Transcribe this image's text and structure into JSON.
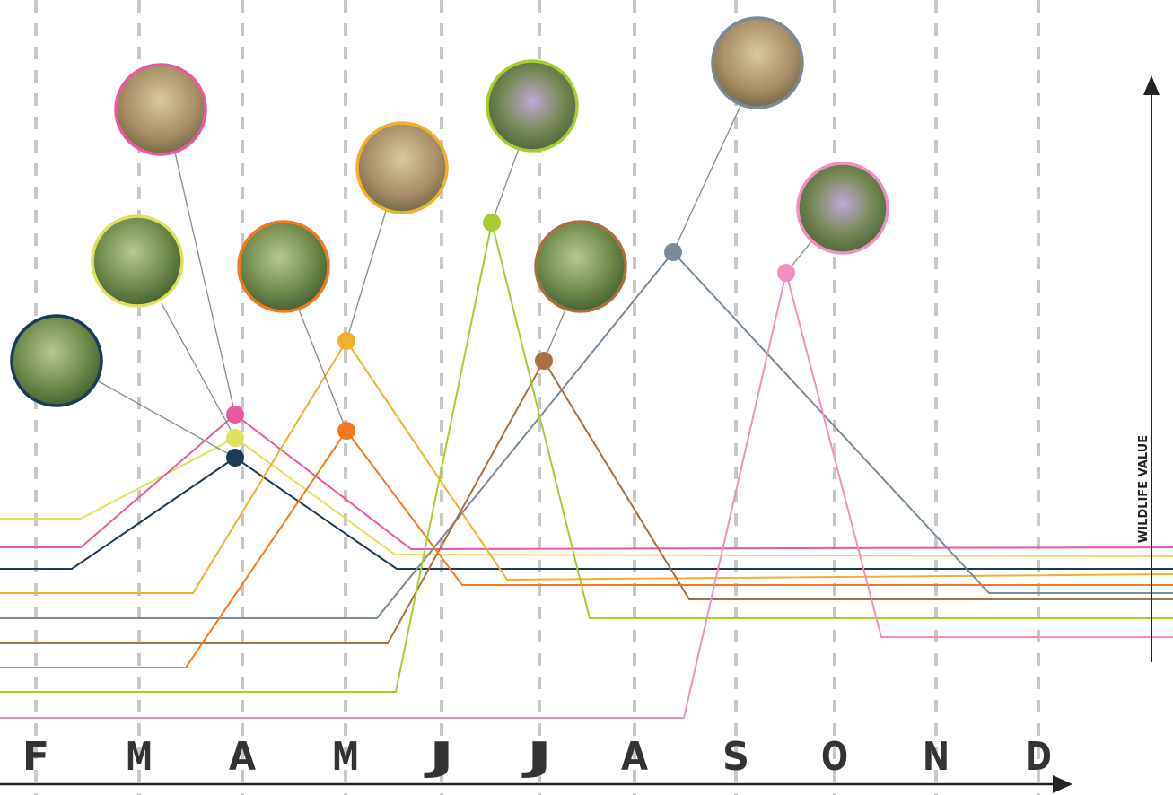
{
  "months": [
    "F",
    "M",
    "A",
    "M",
    "J",
    "J",
    "A",
    "S",
    "O",
    "N",
    "D"
  ],
  "axis_label": "WILDLIFE VALUE"
}
